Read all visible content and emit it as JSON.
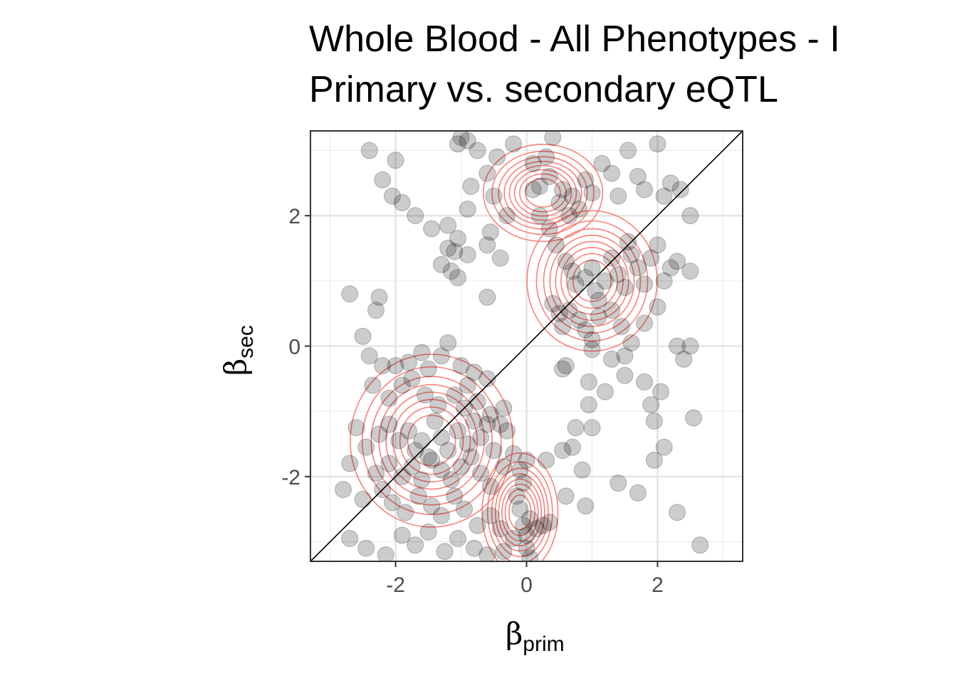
{
  "chart_data": {
    "type": "scatter",
    "title_line1": "Whole Blood - All Phenotypes - I",
    "title_line2": "Primary vs. secondary eQTL",
    "xlabel": "β",
    "xlabel_sub": "prim",
    "ylabel": "β",
    "ylabel_sub": "sec",
    "xlim": [
      -3.3,
      3.3
    ],
    "ylim": [
      -3.3,
      3.3
    ],
    "x_ticks": [
      -2,
      0,
      2
    ],
    "y_ticks": [
      -2,
      0,
      2
    ],
    "x_tick_labels": [
      "-2",
      "0",
      "2"
    ],
    "y_tick_labels": [
      "-2",
      "0",
      "2"
    ],
    "grid": true,
    "reference_line": "y = x",
    "point_color": "#000000",
    "point_alpha": 0.2,
    "contour_color": "#F8766D",
    "density_clusters": [
      {
        "center": [
          -1.45,
          -1.45
        ],
        "spread": [
          0.75,
          0.8
        ]
      },
      {
        "center": [
          1.0,
          1.0
        ],
        "spread": [
          0.6,
          0.65
        ]
      },
      {
        "center": [
          0.25,
          2.35
        ],
        "spread": [
          0.55,
          0.45
        ]
      },
      {
        "center": [
          -0.1,
          -2.55
        ],
        "spread": [
          0.35,
          0.55
        ]
      }
    ],
    "points": [
      [
        -2.4,
        3.0
      ],
      [
        -2.0,
        2.85
      ],
      [
        -2.2,
        2.55
      ],
      [
        -2.05,
        2.3
      ],
      [
        -1.9,
        2.2
      ],
      [
        -1.7,
        2.0
      ],
      [
        -1.45,
        1.8
      ],
      [
        -1.2,
        1.85
      ],
      [
        -1.2,
        1.5
      ],
      [
        -1.1,
        1.45
      ],
      [
        -1.05,
        1.65
      ],
      [
        -0.9,
        1.4
      ],
      [
        -1.3,
        1.25
      ],
      [
        -1.05,
        1.05
      ],
      [
        -1.15,
        1.15
      ],
      [
        -0.6,
        0.75
      ],
      [
        -2.7,
        0.8
      ],
      [
        -2.25,
        0.75
      ],
      [
        -2.3,
        0.55
      ],
      [
        -1.0,
        3.2
      ],
      [
        -1.05,
        3.1
      ],
      [
        -0.9,
        3.15
      ],
      [
        -0.75,
        3.0
      ],
      [
        -0.45,
        2.9
      ],
      [
        -0.2,
        3.1
      ],
      [
        -0.6,
        2.65
      ],
      [
        -0.85,
        2.45
      ],
      [
        -0.5,
        2.3
      ],
      [
        -0.9,
        2.1
      ],
      [
        -0.3,
        2.0
      ],
      [
        -0.55,
        1.75
      ],
      [
        -0.6,
        1.55
      ],
      [
        -0.4,
        1.35
      ],
      [
        0.1,
        2.8
      ],
      [
        0.2,
        2.45
      ],
      [
        0.3,
        2.9
      ],
      [
        0.35,
        2.6
      ],
      [
        0.4,
        3.2
      ],
      [
        0.5,
        2.2
      ],
      [
        0.55,
        2.4
      ],
      [
        0.65,
        2.0
      ],
      [
        0.7,
        2.3
      ],
      [
        0.8,
        2.1
      ],
      [
        0.9,
        2.55
      ],
      [
        1.0,
        2.35
      ],
      [
        1.15,
        2.8
      ],
      [
        1.3,
        2.65
      ],
      [
        1.4,
        2.3
      ],
      [
        1.55,
        3.0
      ],
      [
        1.7,
        2.6
      ],
      [
        1.8,
        2.4
      ],
      [
        2.0,
        3.1
      ],
      [
        2.1,
        2.3
      ],
      [
        2.2,
        2.5
      ],
      [
        2.35,
        2.4
      ],
      [
        2.5,
        2.0
      ],
      [
        0.1,
        2.4
      ],
      [
        0.2,
        2.0
      ],
      [
        0.35,
        1.8
      ],
      [
        0.45,
        1.55
      ],
      [
        0.6,
        1.3
      ],
      [
        0.7,
        1.15
      ],
      [
        0.75,
        0.95
      ],
      [
        0.9,
        1.05
      ],
      [
        1.0,
        1.2
      ],
      [
        1.05,
        0.85
      ],
      [
        1.1,
        0.7
      ],
      [
        1.2,
        1.0
      ],
      [
        1.3,
        1.35
      ],
      [
        1.4,
        1.1
      ],
      [
        1.5,
        0.9
      ],
      [
        1.55,
        1.6
      ],
      [
        1.6,
        1.4
      ],
      [
        1.7,
        1.2
      ],
      [
        1.8,
        0.95
      ],
      [
        1.9,
        1.35
      ],
      [
        2.0,
        1.55
      ],
      [
        2.1,
        1.0
      ],
      [
        2.2,
        1.2
      ],
      [
        2.3,
        1.3
      ],
      [
        2.5,
        1.15
      ],
      [
        0.4,
        0.65
      ],
      [
        0.5,
        0.5
      ],
      [
        0.55,
        0.3
      ],
      [
        0.65,
        0.55
      ],
      [
        0.8,
        0.4
      ],
      [
        0.9,
        0.25
      ],
      [
        1.0,
        0.1
      ],
      [
        1.1,
        0.45
      ],
      [
        1.3,
        0.55
      ],
      [
        1.45,
        0.3
      ],
      [
        1.6,
        0.05
      ],
      [
        1.8,
        0.35
      ],
      [
        2.0,
        0.6
      ],
      [
        0.6,
        -0.3
      ],
      [
        0.55,
        -0.35
      ],
      [
        0.95,
        -0.55
      ],
      [
        1.0,
        -0.05
      ],
      [
        1.3,
        -0.2
      ],
      [
        1.5,
        -0.15
      ],
      [
        2.3,
        0.0
      ],
      [
        2.4,
        -0.2
      ],
      [
        2.5,
        0.0
      ],
      [
        0.95,
        -0.9
      ],
      [
        1.2,
        -0.7
      ],
      [
        1.5,
        -0.45
      ],
      [
        1.8,
        -0.55
      ],
      [
        2.05,
        -0.7
      ],
      [
        1.9,
        -0.9
      ],
      [
        1.95,
        -1.15
      ],
      [
        2.1,
        -1.55
      ],
      [
        1.95,
        -1.75
      ],
      [
        2.55,
        -1.1
      ],
      [
        0.75,
        -1.25
      ],
      [
        1.0,
        -1.25
      ],
      [
        0.85,
        -1.9
      ],
      [
        1.4,
        -2.1
      ],
      [
        1.7,
        -2.25
      ],
      [
        0.9,
        -2.45
      ],
      [
        2.3,
        -2.55
      ],
      [
        2.65,
        -3.05
      ],
      [
        -2.5,
        0.15
      ],
      [
        -2.4,
        -0.15
      ],
      [
        -2.2,
        -0.3
      ],
      [
        -2.0,
        -0.3
      ],
      [
        -1.8,
        -0.25
      ],
      [
        -1.6,
        -0.1
      ],
      [
        -1.5,
        -0.35
      ],
      [
        -1.3,
        -0.15
      ],
      [
        -1.2,
        0.05
      ],
      [
        -1.0,
        -0.3
      ],
      [
        -0.8,
        -0.4
      ],
      [
        -0.6,
        -0.5
      ],
      [
        -2.35,
        -0.6
      ],
      [
        -2.1,
        -0.8
      ],
      [
        -1.9,
        -0.6
      ],
      [
        -1.75,
        -0.5
      ],
      [
        -1.55,
        -0.75
      ],
      [
        -1.35,
        -0.9
      ],
      [
        -1.1,
        -0.75
      ],
      [
        -0.9,
        -0.6
      ],
      [
        -0.95,
        -0.95
      ],
      [
        -0.75,
        -0.85
      ],
      [
        -0.55,
        -1.05
      ],
      [
        -0.4,
        -1.2
      ],
      [
        -0.35,
        -0.95
      ],
      [
        -2.6,
        -1.25
      ],
      [
        -2.25,
        -1.35
      ],
      [
        -2.1,
        -1.2
      ],
      [
        -1.95,
        -1.45
      ],
      [
        -1.8,
        -1.3
      ],
      [
        -1.7,
        -1.6
      ],
      [
        -1.6,
        -1.45
      ],
      [
        -1.5,
        -1.7
      ],
      [
        -1.4,
        -1.15
      ],
      [
        -1.3,
        -1.4
      ],
      [
        -1.2,
        -1.6
      ],
      [
        -1.05,
        -1.3
      ],
      [
        -0.9,
        -1.5
      ],
      [
        -0.8,
        -1.15
      ],
      [
        -0.7,
        -1.4
      ],
      [
        -0.6,
        -1.2
      ],
      [
        -0.5,
        -1.6
      ],
      [
        -0.3,
        -1.3
      ],
      [
        -2.7,
        -1.8
      ],
      [
        -2.45,
        -1.55
      ],
      [
        -2.3,
        -1.95
      ],
      [
        -2.1,
        -1.8
      ],
      [
        -1.9,
        -2.0
      ],
      [
        -1.75,
        -1.85
      ],
      [
        -1.6,
        -2.05
      ],
      [
        -1.45,
        -1.75
      ],
      [
        -1.3,
        -1.9
      ],
      [
        -1.15,
        -2.05
      ],
      [
        -1.0,
        -1.85
      ],
      [
        -0.85,
        -1.7
      ],
      [
        -0.7,
        -1.95
      ],
      [
        -0.55,
        -2.15
      ],
      [
        -0.35,
        -1.85
      ],
      [
        -2.8,
        -2.2
      ],
      [
        -2.5,
        -2.35
      ],
      [
        -2.2,
        -2.2
      ],
      [
        -2.05,
        -2.4
      ],
      [
        -1.85,
        -2.55
      ],
      [
        -1.65,
        -2.3
      ],
      [
        -1.45,
        -2.45
      ],
      [
        -1.3,
        -2.6
      ],
      [
        -1.1,
        -2.3
      ],
      [
        -0.95,
        -2.5
      ],
      [
        -0.75,
        -2.75
      ],
      [
        -0.55,
        -2.6
      ],
      [
        -0.4,
        -2.8
      ],
      [
        -2.7,
        -2.95
      ],
      [
        -2.45,
        -3.1
      ],
      [
        -2.15,
        -3.2
      ],
      [
        -1.9,
        -2.9
      ],
      [
        -1.7,
        -3.05
      ],
      [
        -1.5,
        -2.85
      ],
      [
        -1.25,
        -3.15
      ],
      [
        -1.05,
        -2.95
      ],
      [
        -0.8,
        -3.1
      ],
      [
        -0.6,
        -3.2
      ],
      [
        -0.2,
        -1.65
      ],
      [
        -0.1,
        -1.9
      ],
      [
        -0.05,
        -2.1
      ],
      [
        0.0,
        -1.75
      ],
      [
        -0.15,
        -2.3
      ],
      [
        -0.1,
        -2.5
      ],
      [
        -0.05,
        -2.75
      ],
      [
        0.0,
        -2.9
      ],
      [
        0.05,
        -2.65
      ],
      [
        0.15,
        -2.8
      ],
      [
        0.25,
        -2.75
      ],
      [
        0.35,
        -2.7
      ],
      [
        -0.2,
        -2.95
      ],
      [
        0.0,
        -3.1
      ],
      [
        0.05,
        -3.25
      ],
      [
        0.3,
        -1.75
      ],
      [
        0.55,
        -1.6
      ],
      [
        0.6,
        -2.3
      ],
      [
        0.7,
        -1.55
      ],
      [
        -0.35,
        -3.15
      ]
    ]
  }
}
